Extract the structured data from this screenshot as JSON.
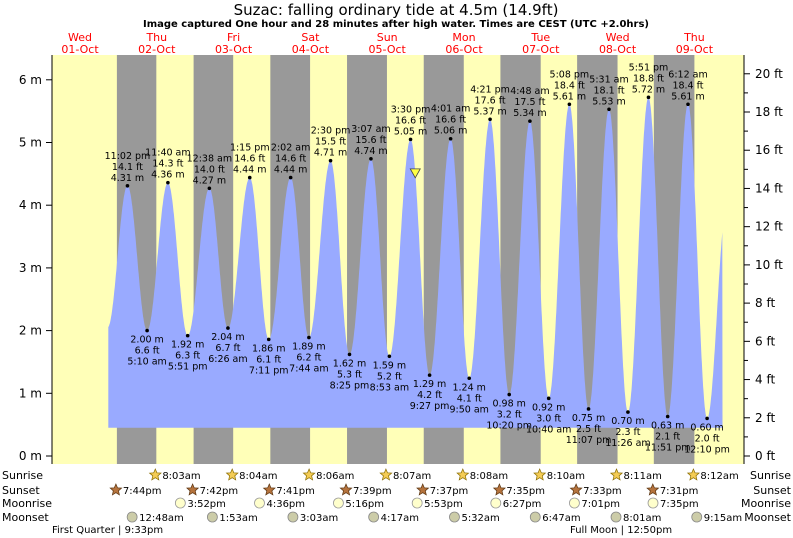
{
  "header": {
    "title": "Suzac: falling  ordinary tide at 4.5m (14.9ft)",
    "subtitle": "Image captured One hour and 28 minutes after high water. Times are CEST (UTC +2.0hrs)"
  },
  "days": [
    {
      "name": "Wed",
      "date": "01-Oct"
    },
    {
      "name": "Thu",
      "date": "02-Oct"
    },
    {
      "name": "Fri",
      "date": "03-Oct"
    },
    {
      "name": "Sat",
      "date": "04-Oct"
    },
    {
      "name": "Sun",
      "date": "05-Oct"
    },
    {
      "name": "Mon",
      "date": "06-Oct"
    },
    {
      "name": "Tue",
      "date": "07-Oct"
    },
    {
      "name": "Wed",
      "date": "08-Oct"
    },
    {
      "name": "Thu",
      "date": "09-Oct"
    }
  ],
  "chart_data": {
    "type": "area",
    "y_left_ticks": [
      "0 m",
      "1 m",
      "2 m",
      "3 m",
      "4 m",
      "5 m",
      "6 m"
    ],
    "y_right_ticks": [
      "0 ft",
      "2 ft",
      "4 ft",
      "6 ft",
      "8 ft",
      "10 ft",
      "12 ft",
      "14 ft",
      "16 ft",
      "18 ft",
      "20 ft"
    ],
    "ylim": [
      0,
      6.5
    ],
    "current_level_m": 4.5,
    "tides": [
      {
        "type": "high",
        "day": 0,
        "hour": 23.03,
        "m": 4.31,
        "time": "11:02 pm",
        "ft": "14.1 ft",
        "height": "4.31 m"
      },
      {
        "type": "low",
        "day": 1,
        "hour": 5.17,
        "m": 2.0,
        "time": "5:10 am",
        "ft": "6.6 ft",
        "height": "2.00 m"
      },
      {
        "type": "high",
        "day": 1,
        "hour": 11.67,
        "m": 4.36,
        "time": "11:40 am",
        "ft": "14.3 ft",
        "height": "4.36 m"
      },
      {
        "type": "low",
        "day": 1,
        "hour": 17.85,
        "m": 1.92,
        "time": "5:51 pm",
        "ft": "6.3 ft",
        "height": "1.92 m"
      },
      {
        "type": "high",
        "day": 2,
        "hour": 0.63,
        "m": 4.27,
        "time": "12:38 am",
        "ft": "14.0 ft",
        "height": "4.27 m"
      },
      {
        "type": "low",
        "day": 2,
        "hour": 6.43,
        "m": 2.04,
        "time": "6:26 am",
        "ft": "6.7 ft",
        "height": "2.04 m"
      },
      {
        "type": "high",
        "day": 2,
        "hour": 13.25,
        "m": 4.44,
        "time": "1:15 pm",
        "ft": "14.6 ft",
        "height": "4.44 m"
      },
      {
        "type": "low",
        "day": 2,
        "hour": 19.18,
        "m": 1.86,
        "time": "7:11 pm",
        "ft": "6.1 ft",
        "height": "1.86 m"
      },
      {
        "type": "high",
        "day": 3,
        "hour": 2.03,
        "m": 4.44,
        "time": "2:02 am",
        "ft": "14.6 ft",
        "height": "4.44 m"
      },
      {
        "type": "low",
        "day": 3,
        "hour": 7.73,
        "m": 1.89,
        "time": "7:44 am",
        "ft": "6.2 ft",
        "height": "1.89 m"
      },
      {
        "type": "high",
        "day": 3,
        "hour": 14.5,
        "m": 4.71,
        "time": "2:30 pm",
        "ft": "15.5 ft",
        "height": "4.71 m"
      },
      {
        "type": "low",
        "day": 3,
        "hour": 20.42,
        "m": 1.62,
        "time": "8:25 pm",
        "ft": "5.3 ft",
        "height": "1.62 m"
      },
      {
        "type": "high",
        "day": 4,
        "hour": 3.12,
        "m": 4.74,
        "time": "3:07 am",
        "ft": "15.6 ft",
        "height": "4.74 m"
      },
      {
        "type": "low",
        "day": 4,
        "hour": 8.88,
        "m": 1.59,
        "time": "8:53 am",
        "ft": "5.2 ft",
        "height": "1.59 m"
      },
      {
        "type": "high",
        "day": 4,
        "hour": 15.5,
        "m": 5.05,
        "time": "3:30 pm",
        "ft": "16.6 ft",
        "height": "5.05 m"
      },
      {
        "type": "low",
        "day": 4,
        "hour": 21.45,
        "m": 1.29,
        "time": "9:27 pm",
        "ft": "4.2 ft",
        "height": "1.29 m"
      },
      {
        "type": "high",
        "day": 5,
        "hour": 4.02,
        "m": 5.06,
        "time": "4:01 am",
        "ft": "16.6 ft",
        "height": "5.06 m"
      },
      {
        "type": "low",
        "day": 5,
        "hour": 9.83,
        "m": 1.24,
        "time": "9:50 am",
        "ft": "4.1 ft",
        "height": "1.24 m"
      },
      {
        "type": "high",
        "day": 5,
        "hour": 16.35,
        "m": 5.37,
        "time": "4:21 pm",
        "ft": "17.6 ft",
        "height": "5.37 m"
      },
      {
        "type": "low",
        "day": 5,
        "hour": 22.33,
        "m": 0.98,
        "time": "10:20 pm",
        "ft": "3.2 ft",
        "height": "0.98 m"
      },
      {
        "type": "high",
        "day": 6,
        "hour": 4.8,
        "m": 5.34,
        "time": "4:48 am",
        "ft": "17.5 ft",
        "height": "5.34 m"
      },
      {
        "type": "low",
        "day": 6,
        "hour": 10.67,
        "m": 0.92,
        "time": "10:40 am",
        "ft": "3.0 ft",
        "height": "0.92 m"
      },
      {
        "type": "high",
        "day": 6,
        "hour": 17.13,
        "m": 5.61,
        "time": "5:08 pm",
        "ft": "18.4 ft",
        "height": "5.61 m"
      },
      {
        "type": "low",
        "day": 6,
        "hour": 23.12,
        "m": 0.75,
        "time": "11:07 pm",
        "ft": "2.5 ft",
        "height": "0.75 m"
      },
      {
        "type": "high",
        "day": 7,
        "hour": 5.52,
        "m": 5.53,
        "time": "5:31 am",
        "ft": "18.1 ft",
        "height": "5.53 m"
      },
      {
        "type": "low",
        "day": 7,
        "hour": 11.43,
        "m": 0.7,
        "time": "11:26 am",
        "ft": "2.3 ft",
        "height": "0.70 m"
      },
      {
        "type": "high",
        "day": 7,
        "hour": 17.85,
        "m": 5.72,
        "time": "5:51 pm",
        "ft": "18.8 ft",
        "height": "5.72 m"
      },
      {
        "type": "low",
        "day": 7,
        "hour": 23.85,
        "m": 0.63,
        "time": "11:51 pm",
        "ft": "2.1 ft",
        "height": "0.63 m"
      },
      {
        "type": "high",
        "day": 8,
        "hour": 6.2,
        "m": 5.61,
        "time": "6:12 am",
        "ft": "18.4 ft",
        "height": "5.61 m"
      },
      {
        "type": "low",
        "day": 8,
        "hour": 12.17,
        "m": 0.6,
        "time": "12:10 pm",
        "ft": "2.0 ft",
        "height": "0.60 m"
      }
    ]
  },
  "events": {
    "row_labels": {
      "sunrise": "Sunrise",
      "sunset": "Sunset",
      "moonrise": "Moonrise",
      "moonset": "Moonset"
    },
    "sunrise": [
      {
        "day": 1,
        "hour": 8.05,
        "time": "8:03am"
      },
      {
        "day": 2,
        "hour": 8.07,
        "time": "8:04am"
      },
      {
        "day": 3,
        "hour": 8.1,
        "time": "8:06am"
      },
      {
        "day": 4,
        "hour": 8.12,
        "time": "8:07am"
      },
      {
        "day": 5,
        "hour": 8.13,
        "time": "8:08am"
      },
      {
        "day": 6,
        "hour": 8.17,
        "time": "8:10am"
      },
      {
        "day": 7,
        "hour": 8.18,
        "time": "8:11am"
      },
      {
        "day": 8,
        "hour": 8.2,
        "time": "8:12am"
      }
    ],
    "sunset": [
      {
        "day": 0,
        "hour": 19.73,
        "time": "7:44pm"
      },
      {
        "day": 1,
        "hour": 19.7,
        "time": "7:42pm"
      },
      {
        "day": 2,
        "hour": 19.68,
        "time": "7:41pm"
      },
      {
        "day": 3,
        "hour": 19.65,
        "time": "7:39pm"
      },
      {
        "day": 4,
        "hour": 19.62,
        "time": "7:37pm"
      },
      {
        "day": 5,
        "hour": 19.58,
        "time": "7:35pm"
      },
      {
        "day": 6,
        "hour": 19.55,
        "time": "7:33pm"
      },
      {
        "day": 7,
        "hour": 19.52,
        "time": "7:31pm"
      }
    ],
    "moonrise": [
      {
        "day": 1,
        "hour": 15.87,
        "time": "3:52pm"
      },
      {
        "day": 2,
        "hour": 16.6,
        "time": "4:36pm"
      },
      {
        "day": 3,
        "hour": 17.27,
        "time": "5:16pm"
      },
      {
        "day": 4,
        "hour": 17.88,
        "time": "5:53pm"
      },
      {
        "day": 5,
        "hour": 18.45,
        "time": "6:27pm"
      },
      {
        "day": 6,
        "hour": 19.02,
        "time": "7:01pm"
      },
      {
        "day": 7,
        "hour": 19.58,
        "time": "7:35pm"
      }
    ],
    "moonset": [
      {
        "day": 1,
        "hour": 0.8,
        "time": "12:48am"
      },
      {
        "day": 2,
        "hour": 1.88,
        "time": "1:53am"
      },
      {
        "day": 3,
        "hour": 3.05,
        "time": "3:03am"
      },
      {
        "day": 4,
        "hour": 4.28,
        "time": "4:17am"
      },
      {
        "day": 5,
        "hour": 5.53,
        "time": "5:32am"
      },
      {
        "day": 6,
        "hour": 6.78,
        "time": "6:47am"
      },
      {
        "day": 7,
        "hour": 8.02,
        "time": "8:01am"
      },
      {
        "day": 8,
        "hour": 9.25,
        "time": "9:15am"
      }
    ]
  },
  "moon_phases": [
    {
      "label": "First Quarter | 9:33pm"
    },
    {
      "label": "Full Moon | 12:50pm"
    }
  ]
}
